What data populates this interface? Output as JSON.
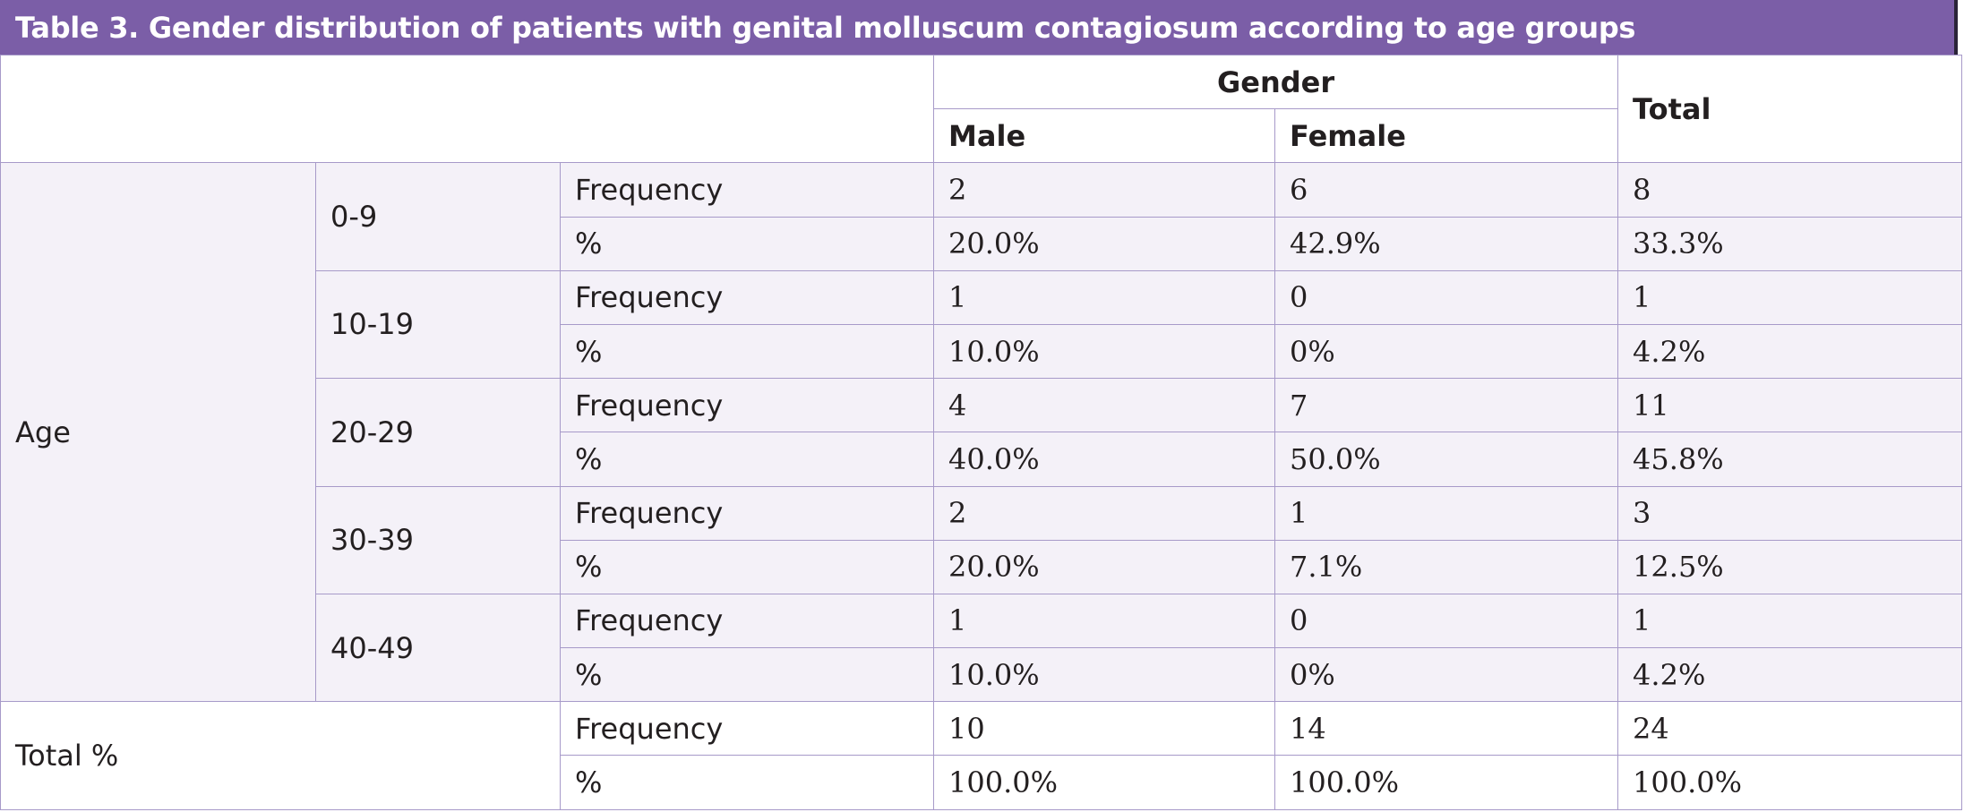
{
  "title": "Table 3. Gender distribution of patients with genital molluscum contagiosum according to age groups",
  "header": {
    "gender": "Gender",
    "total": "Total",
    "male": "Male",
    "female": "Female"
  },
  "age_label": "Age",
  "age_groups": [
    {
      "range": "0-9",
      "freq": {
        "label": "Frequency",
        "male": "2",
        "female": "6",
        "total": "8"
      },
      "pct": {
        "label": "%",
        "male": "20.0%",
        "female": "42.9%",
        "total": "33.3%"
      }
    },
    {
      "range": "10-19",
      "freq": {
        "label": "Frequency",
        "male": "1",
        "female": "0",
        "total": "1"
      },
      "pct": {
        "label": "%",
        "male": "10.0%",
        "female": "0%",
        "total": "4.2%"
      }
    },
    {
      "range": "20-29",
      "freq": {
        "label": "Frequency",
        "male": "4",
        "female": "7",
        "total": "11"
      },
      "pct": {
        "label": "%",
        "male": "40.0%",
        "female": "50.0%",
        "total": "45.8%"
      }
    },
    {
      "range": "30-39",
      "freq": {
        "label": "Frequency",
        "male": "2",
        "female": "1",
        "total": "3"
      },
      "pct": {
        "label": "%",
        "male": "20.0%",
        "female": "7.1%",
        "total": "12.5%"
      }
    },
    {
      "range": "40-49",
      "freq": {
        "label": "Frequency",
        "male": "1",
        "female": "0",
        "total": "1"
      },
      "pct": {
        "label": "%",
        "male": "10.0%",
        "female": "0%",
        "total": "4.2%"
      }
    }
  ],
  "total_row": {
    "label": "Total %",
    "freq": {
      "label": "Frequency",
      "male": "10",
      "female": "14",
      "total": "24"
    },
    "pct": {
      "label": "%",
      "male": "100.0%",
      "female": "100.0%",
      "total": "100.0%"
    }
  },
  "colors": {
    "title_bar": "#7b5ea7",
    "border": "#a79ac9",
    "row_fill": "#f4f1f8"
  }
}
